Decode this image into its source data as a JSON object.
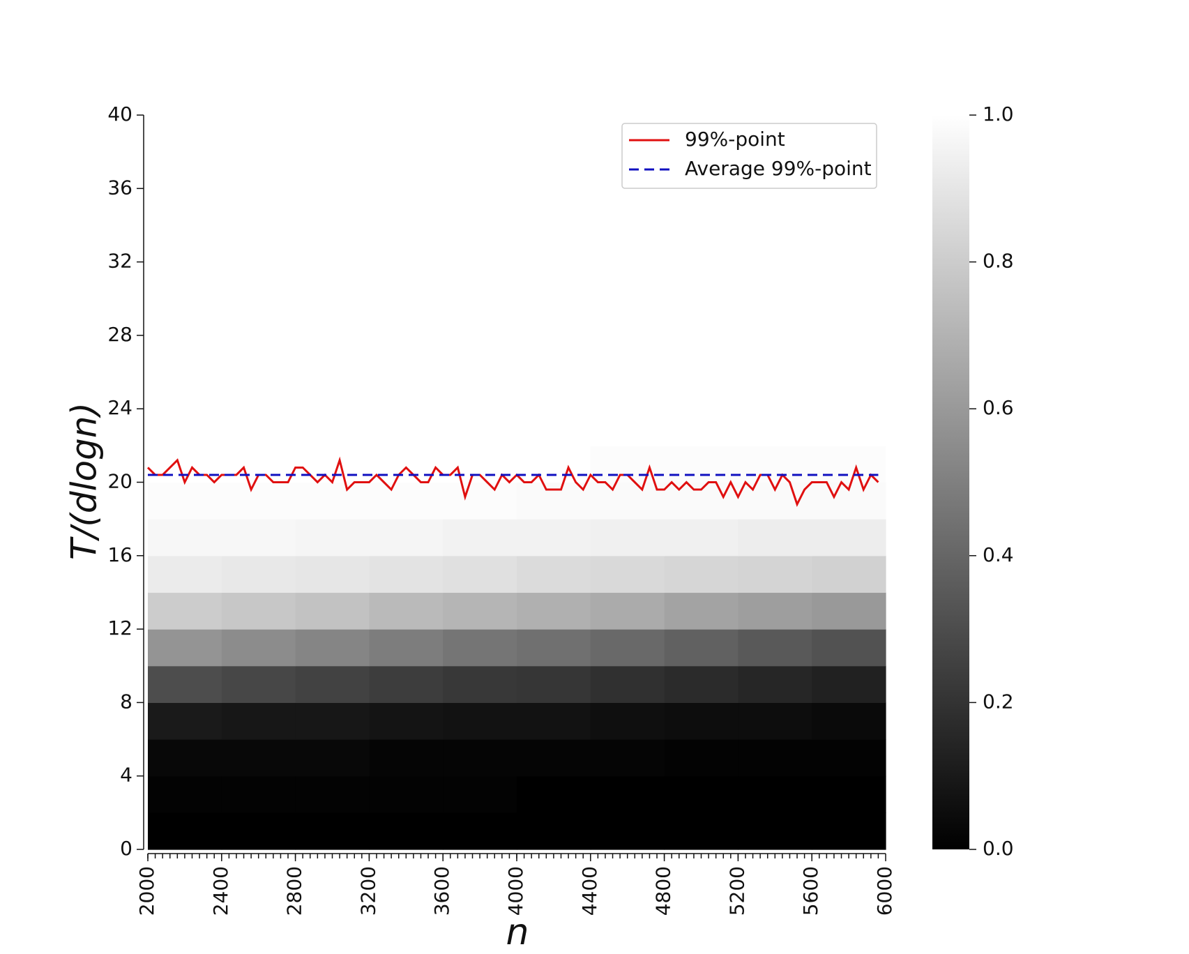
{
  "chart_data": {
    "type": "heatmap-line",
    "xlabel": "n",
    "ylabel": "T/(dlogn)",
    "xlim": [
      2000,
      6000
    ],
    "ylim": [
      0,
      40
    ],
    "xticks": [
      2000,
      2400,
      2800,
      3200,
      3600,
      4000,
      4400,
      4800,
      5200,
      5600,
      6000
    ],
    "yticks": [
      0,
      4,
      8,
      12,
      16,
      20,
      24,
      28,
      32,
      36,
      40
    ],
    "legend": "upper right",
    "heatmap": {
      "z": [
        [
          0,
          0,
          0,
          0,
          0,
          0,
          0,
          0,
          0,
          0
        ],
        [
          0.01,
          0.01,
          0.01,
          0.01,
          0.01,
          0,
          0,
          0,
          0,
          0
        ],
        [
          0.03,
          0.03,
          0.03,
          0.02,
          0.02,
          0.02,
          0.02,
          0.01,
          0.01,
          0.01
        ],
        [
          0.1,
          0.09,
          0.09,
          0.08,
          0.07,
          0.07,
          0.06,
          0.05,
          0.05,
          0.04
        ],
        [
          0.3,
          0.28,
          0.26,
          0.24,
          0.22,
          0.21,
          0.19,
          0.17,
          0.15,
          0.13
        ],
        [
          0.58,
          0.55,
          0.52,
          0.49,
          0.46,
          0.44,
          0.41,
          0.38,
          0.35,
          0.32
        ],
        [
          0.8,
          0.78,
          0.76,
          0.73,
          0.71,
          0.69,
          0.67,
          0.64,
          0.62,
          0.6
        ],
        [
          0.92,
          0.91,
          0.9,
          0.89,
          0.88,
          0.86,
          0.85,
          0.84,
          0.83,
          0.82
        ],
        [
          0.97,
          0.97,
          0.96,
          0.96,
          0.95,
          0.95,
          0.94,
          0.94,
          0.93,
          0.93
        ],
        [
          0.99,
          0.99,
          0.99,
          0.99,
          0.99,
          0.98,
          0.98,
          0.98,
          0.98,
          0.98
        ],
        [
          1,
          1,
          1,
          1,
          1,
          1,
          0.99,
          0.99,
          0.99,
          0.99
        ],
        [
          1,
          1,
          1,
          1,
          1,
          1,
          1,
          1,
          1,
          1
        ],
        [
          1,
          1,
          1,
          1,
          1,
          1,
          1,
          1,
          1,
          1
        ],
        [
          1,
          1,
          1,
          1,
          1,
          1,
          1,
          1,
          1,
          1
        ],
        [
          1,
          1,
          1,
          1,
          1,
          1,
          1,
          1,
          1,
          1
        ],
        [
          1,
          1,
          1,
          1,
          1,
          1,
          1,
          1,
          1,
          1
        ],
        [
          1,
          1,
          1,
          1,
          1,
          1,
          1,
          1,
          1,
          1
        ],
        [
          1,
          1,
          1,
          1,
          1,
          1,
          1,
          1,
          1,
          1
        ],
        [
          1,
          1,
          1,
          1,
          1,
          1,
          1,
          1,
          1,
          1
        ],
        [
          1,
          1,
          1,
          1,
          1,
          1,
          1,
          1,
          1,
          1
        ]
      ]
    },
    "colorbar": {
      "lim": [
        0,
        1
      ],
      "ticks": [
        {
          "value": 0,
          "label": "0.0"
        },
        {
          "value": 0.2,
          "label": "0.2"
        },
        {
          "value": 0.4,
          "label": "0.4"
        },
        {
          "value": 0.6,
          "label": "0.6"
        },
        {
          "value": 0.8,
          "label": "0.8"
        },
        {
          "value": 1,
          "label": "1.0"
        }
      ]
    },
    "series": [
      {
        "name": "99%-point",
        "color": "#e01010",
        "dash": false,
        "x": [
          2000,
          2040,
          2080,
          2120,
          2160,
          2200,
          2240,
          2280,
          2320,
          2360,
          2400,
          2440,
          2480,
          2520,
          2560,
          2600,
          2640,
          2680,
          2720,
          2760,
          2800,
          2840,
          2880,
          2920,
          2960,
          3000,
          3040,
          3080,
          3120,
          3160,
          3200,
          3240,
          3280,
          3320,
          3360,
          3400,
          3440,
          3480,
          3520,
          3560,
          3600,
          3640,
          3680,
          3720,
          3760,
          3800,
          3840,
          3880,
          3920,
          3960,
          4000,
          4040,
          4080,
          4120,
          4160,
          4200,
          4240,
          4280,
          4320,
          4360,
          4400,
          4440,
          4480,
          4520,
          4560,
          4600,
          4640,
          4680,
          4720,
          4760,
          4800,
          4840,
          4880,
          4920,
          4960,
          5000,
          5040,
          5080,
          5120,
          5160,
          5200,
          5240,
          5280,
          5320,
          5360,
          5400,
          5440,
          5480,
          5520,
          5560,
          5600,
          5640,
          5680,
          5720,
          5760,
          5800,
          5840,
          5880,
          5920,
          5960
        ],
        "values": [
          20.8,
          20.4,
          20.4,
          20.8,
          21.2,
          20.0,
          20.8,
          20.4,
          20.4,
          20.0,
          20.4,
          20.4,
          20.4,
          20.8,
          19.6,
          20.4,
          20.4,
          20.0,
          20.0,
          20.0,
          20.8,
          20.8,
          20.4,
          20.0,
          20.4,
          20.0,
          21.2,
          19.6,
          20.0,
          20.0,
          20.0,
          20.4,
          20.0,
          19.6,
          20.4,
          20.8,
          20.4,
          20.0,
          20.0,
          20.8,
          20.4,
          20.4,
          20.8,
          19.2,
          20.4,
          20.4,
          20.0,
          19.6,
          20.4,
          20.0,
          20.4,
          20.0,
          20.0,
          20.4,
          19.6,
          19.6,
          19.6,
          20.8,
          20.0,
          19.6,
          20.4,
          20.0,
          20.0,
          19.6,
          20.4,
          20.4,
          20.0,
          19.6,
          20.8,
          19.6,
          19.6,
          20.0,
          19.6,
          20.0,
          19.6,
          19.6,
          20.0,
          20.0,
          19.2,
          20.0,
          19.2,
          20.0,
          19.6,
          20.4,
          20.4,
          19.6,
          20.4,
          20.0,
          18.8,
          19.6,
          20.0,
          20.0,
          20.0,
          19.2,
          20.0,
          19.6,
          20.8,
          19.6,
          20.4,
          20.0
        ]
      },
      {
        "name": "Average 99%-point",
        "color": "#1010c0",
        "dash": true,
        "x": [
          2000,
          5960
        ],
        "values": [
          20.4,
          20.4
        ]
      }
    ]
  }
}
